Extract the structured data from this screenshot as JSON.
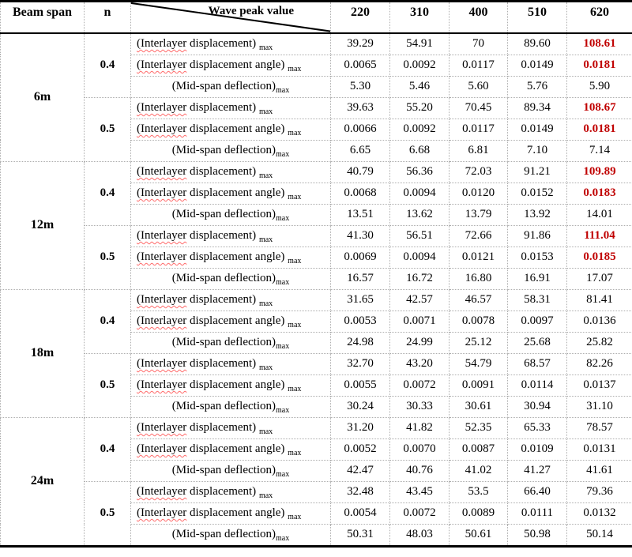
{
  "colors": {
    "highlight": "#c00000",
    "spellcheck_underline": "#ff6a6a",
    "gridline": "#aeaeae",
    "frame": "#000000"
  },
  "table": {
    "header": {
      "beam_span": "Beam span",
      "n": "n",
      "diagonal_label": "Wave peak value",
      "wave_values": [
        "220",
        "310",
        "400",
        "510",
        "620"
      ]
    },
    "labels": {
      "disp": {
        "wavy": "(Interlayer",
        "main": " displacement) ",
        "sub": "max",
        "align": "left"
      },
      "angle": {
        "wavy": "(Interlayer",
        "main": " displacement angle) ",
        "sub": "max",
        "align": "left"
      },
      "defl": {
        "wavy": "",
        "main": "(Mid-span deflection)",
        "sub": "max",
        "align": "center"
      }
    },
    "groups": [
      {
        "span": "6m",
        "subgroups": [
          {
            "n": "0.4",
            "rows": [
              {
                "label": "disp",
                "values": [
                  "39.29",
                  "54.91",
                  "70",
                  "89.60",
                  "108.61"
                ],
                "red_last": true
              },
              {
                "label": "angle",
                "values": [
                  "0.0065",
                  "0.0092",
                  "0.0117",
                  "0.0149",
                  "0.0181"
                ],
                "red_last": true
              },
              {
                "label": "defl",
                "values": [
                  "5.30",
                  "5.46",
                  "5.60",
                  "5.76",
                  "5.90"
                ],
                "red_last": false
              }
            ]
          },
          {
            "n": "0.5",
            "rows": [
              {
                "label": "disp",
                "values": [
                  "39.63",
                  "55.20",
                  "70.45",
                  "89.34",
                  "108.67"
                ],
                "red_last": true
              },
              {
                "label": "angle",
                "values": [
                  "0.0066",
                  "0.0092",
                  "0.0117",
                  "0.0149",
                  "0.0181"
                ],
                "red_last": true
              },
              {
                "label": "defl",
                "values": [
                  "6.65",
                  "6.68",
                  "6.81",
                  "7.10",
                  "7.14"
                ],
                "red_last": false
              }
            ]
          }
        ]
      },
      {
        "span": "12m",
        "subgroups": [
          {
            "n": "0.4",
            "rows": [
              {
                "label": "disp",
                "values": [
                  "40.79",
                  "56.36",
                  "72.03",
                  "91.21",
                  "109.89"
                ],
                "red_last": true
              },
              {
                "label": "angle",
                "values": [
                  "0.0068",
                  "0.0094",
                  "0.0120",
                  "0.0152",
                  "0.0183"
                ],
                "red_last": true
              },
              {
                "label": "defl",
                "values": [
                  "13.51",
                  "13.62",
                  "13.79",
                  "13.92",
                  "14.01"
                ],
                "red_last": false
              }
            ]
          },
          {
            "n": "0.5",
            "rows": [
              {
                "label": "disp",
                "values": [
                  "41.30",
                  "56.51",
                  "72.66",
                  "91.86",
                  "111.04"
                ],
                "red_last": true
              },
              {
                "label": "angle",
                "values": [
                  "0.0069",
                  "0.0094",
                  "0.0121",
                  "0.0153",
                  "0.0185"
                ],
                "red_last": true
              },
              {
                "label": "defl",
                "values": [
                  "16.57",
                  "16.72",
                  "16.80",
                  "16.91",
                  "17.07"
                ],
                "red_last": false
              }
            ]
          }
        ]
      },
      {
        "span": "18m",
        "subgroups": [
          {
            "n": "0.4",
            "rows": [
              {
                "label": "disp",
                "values": [
                  "31.65",
                  "42.57",
                  "46.57",
                  "58.31",
                  "81.41"
                ],
                "red_last": false
              },
              {
                "label": "angle",
                "values": [
                  "0.0053",
                  "0.0071",
                  "0.0078",
                  "0.0097",
                  "0.0136"
                ],
                "red_last": false
              },
              {
                "label": "defl",
                "values": [
                  "24.98",
                  "24.99",
                  "25.12",
                  "25.68",
                  "25.82"
                ],
                "red_last": false
              }
            ]
          },
          {
            "n": "0.5",
            "rows": [
              {
                "label": "disp",
                "values": [
                  "32.70",
                  "43.20",
                  "54.79",
                  "68.57",
                  "82.26"
                ],
                "red_last": false
              },
              {
                "label": "angle",
                "values": [
                  "0.0055",
                  "0.0072",
                  "0.0091",
                  "0.0114",
                  "0.0137"
                ],
                "red_last": false
              },
              {
                "label": "defl",
                "values": [
                  "30.24",
                  "30.33",
                  "30.61",
                  "30.94",
                  "31.10"
                ],
                "red_last": false
              }
            ]
          }
        ]
      },
      {
        "span": "24m",
        "subgroups": [
          {
            "n": "0.4",
            "rows": [
              {
                "label": "disp",
                "values": [
                  "31.20",
                  "41.82",
                  "52.35",
                  "65.33",
                  "78.57"
                ],
                "red_last": false
              },
              {
                "label": "angle",
                "values": [
                  "0.0052",
                  "0.0070",
                  "0.0087",
                  "0.0109",
                  "0.0131"
                ],
                "red_last": false
              },
              {
                "label": "defl",
                "values": [
                  "42.47",
                  "40.76",
                  "41.02",
                  "41.27",
                  "41.61"
                ],
                "red_last": false
              }
            ]
          },
          {
            "n": "0.5",
            "rows": [
              {
                "label": "disp",
                "values": [
                  "32.48",
                  "43.45",
                  "53.5",
                  "66.40",
                  "79.36"
                ],
                "red_last": false
              },
              {
                "label": "angle",
                "values": [
                  "0.0054",
                  "0.0072",
                  "0.0089",
                  "0.0111",
                  "0.0132"
                ],
                "red_last": false
              },
              {
                "label": "defl",
                "values": [
                  "50.31",
                  "48.03",
                  "50.61",
                  "50.98",
                  "50.14"
                ],
                "red_last": false
              }
            ]
          }
        ]
      }
    ]
  }
}
